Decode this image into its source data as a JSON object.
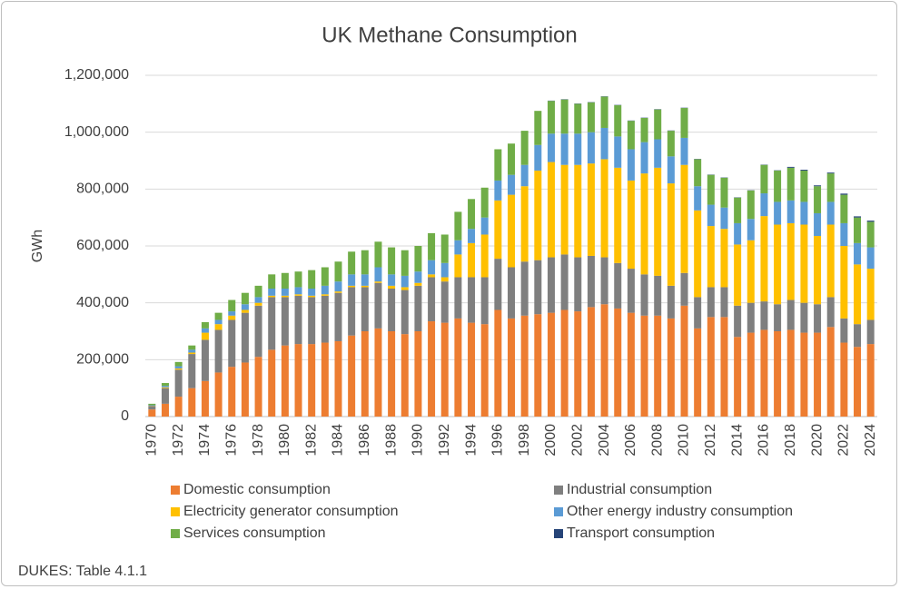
{
  "chart_data": {
    "type": "stacked-bar",
    "title": "UK Methane Consumption",
    "y_label": "GWh",
    "source": "DUKES: Table 4.1.1",
    "categories": [
      "1970",
      null,
      "1972",
      null,
      "1974",
      null,
      "1976",
      null,
      "1978",
      null,
      "1980",
      null,
      "1982",
      null,
      "1984",
      null,
      "1986",
      null,
      "1988",
      null,
      "1990",
      null,
      "1992",
      null,
      "1994",
      null,
      "1996",
      null,
      "1998",
      null,
      "2000",
      null,
      "2002",
      null,
      "2004",
      null,
      "2006",
      null,
      "2008",
      null,
      "2010",
      null,
      "2012",
      null,
      "2014",
      null,
      "2016",
      null,
      "2018",
      null,
      "2020",
      null,
      "2022",
      null,
      "2024"
    ],
    "ylim": [
      0,
      1200000
    ],
    "yticks": [
      0,
      {
        "value": 200000,
        "label": "200,000"
      },
      {
        "value": 400000,
        "label": "400,000"
      },
      {
        "value": 600000,
        "label": "600,000"
      },
      {
        "value": 800000,
        "label": "800,000"
      },
      {
        "value": 1000000,
        "label": "1,000,000"
      },
      {
        "value": 1200000,
        "label": "1,200,000"
      }
    ],
    "grid": true,
    "series": [
      {
        "name": "Domestic consumption",
        "color": "#ED7D31",
        "values": [
          25000,
          45000,
          70000,
          100000,
          125000,
          155000,
          175000,
          190000,
          210000,
          235000,
          250000,
          255000,
          255000,
          260000,
          265000,
          285000,
          300000,
          310000,
          300000,
          290000,
          300000,
          335000,
          330000,
          345000,
          330000,
          325000,
          375000,
          345000,
          355000,
          360000,
          365000,
          375000,
          370000,
          385000,
          395000,
          380000,
          365000,
          355000,
          355000,
          345000,
          390000,
          310000,
          350000,
          350000,
          280000,
          295000,
          305000,
          300000,
          305000,
          295000,
          295000,
          315000,
          260000,
          245000,
          255000
        ]
      },
      {
        "name": "Industrial consumption",
        "color": "#7F7F7F",
        "values": [
          12000,
          55000,
          95000,
          120000,
          145000,
          150000,
          165000,
          175000,
          180000,
          185000,
          170000,
          170000,
          165000,
          165000,
          170000,
          170000,
          155000,
          160000,
          150000,
          155000,
          160000,
          155000,
          145000,
          145000,
          160000,
          165000,
          180000,
          180000,
          190000,
          190000,
          195000,
          195000,
          190000,
          180000,
          165000,
          160000,
          155000,
          145000,
          140000,
          115000,
          115000,
          110000,
          105000,
          105000,
          110000,
          105000,
          100000,
          95000,
          105000,
          105000,
          100000,
          105000,
          85000,
          80000,
          85000
        ]
      },
      {
        "name": "Electricity generator consumption",
        "color": "#FFC000",
        "values": [
          1000,
          3000,
          4000,
          5000,
          25000,
          20000,
          15000,
          10000,
          10000,
          5000,
          5000,
          5000,
          5000,
          5000,
          5000,
          5000,
          5000,
          5000,
          10000,
          10000,
          10000,
          10000,
          15000,
          80000,
          120000,
          150000,
          205000,
          255000,
          265000,
          315000,
          335000,
          315000,
          325000,
          325000,
          345000,
          335000,
          310000,
          355000,
          380000,
          360000,
          380000,
          305000,
          215000,
          205000,
          215000,
          220000,
          300000,
          280000,
          270000,
          275000,
          240000,
          255000,
          255000,
          210000,
          180000
        ]
      },
      {
        "name": "Other energy industry consumption",
        "color": "#5B9BD5",
        "values": [
          2000,
          5000,
          8000,
          10000,
          15000,
          15000,
          15000,
          20000,
          20000,
          25000,
          25000,
          25000,
          25000,
          30000,
          35000,
          40000,
          40000,
          50000,
          40000,
          40000,
          40000,
          50000,
          50000,
          50000,
          50000,
          60000,
          70000,
          70000,
          75000,
          90000,
          100000,
          110000,
          110000,
          110000,
          110000,
          110000,
          110000,
          110000,
          100000,
          95000,
          95000,
          85000,
          75000,
          75000,
          75000,
          75000,
          80000,
          80000,
          80000,
          80000,
          80000,
          80000,
          80000,
          75000,
          75000
        ]
      },
      {
        "name": "Services consumption",
        "color": "#70AD47",
        "values": [
          5000,
          10000,
          15000,
          15000,
          22000,
          25000,
          40000,
          40000,
          40000,
          50000,
          55000,
          55000,
          65000,
          65000,
          70000,
          80000,
          85000,
          90000,
          95000,
          90000,
          90000,
          95000,
          100000,
          100000,
          105000,
          105000,
          110000,
          110000,
          120000,
          120000,
          115000,
          120000,
          105000,
          105000,
          110000,
          110000,
          100000,
          85000,
          105000,
          90000,
          105000,
          95000,
          105000,
          105000,
          90000,
          100000,
          100000,
          110000,
          115000,
          110000,
          95000,
          100000,
          100000,
          90000,
          90000
        ]
      },
      {
        "name": "Transport consumption",
        "color": "#264478",
        "values": [
          0,
          0,
          0,
          0,
          0,
          0,
          0,
          0,
          0,
          0,
          0,
          0,
          0,
          0,
          0,
          0,
          0,
          0,
          0,
          0,
          0,
          0,
          0,
          0,
          0,
          0,
          0,
          0,
          0,
          0,
          1000,
          1000,
          1000,
          1000,
          1000,
          1000,
          1000,
          1000,
          1000,
          1000,
          1000,
          1000,
          1000,
          1000,
          1000,
          1000,
          1000,
          1000,
          3000,
          3000,
          3000,
          3000,
          4000,
          4000,
          4000
        ]
      }
    ]
  }
}
